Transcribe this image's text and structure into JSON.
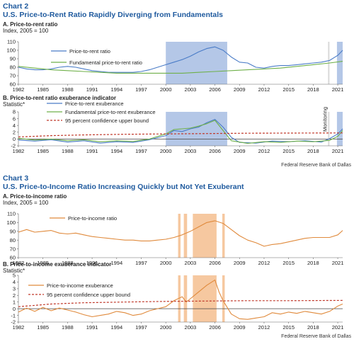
{
  "chart2": {
    "label": "Chart 2",
    "title": "U.S. Price-to-Rent Ratio Rapidly Diverging from Fundamentals",
    "panel_a_title": "A. Price-to-rent ratio",
    "panel_a_unit": "Index, 2005 = 100",
    "panel_b_title": "B. Price-to-rent ratio exuberance indicator",
    "panel_b_unit": "Statistic*",
    "monitoring_label": "Monitoring",
    "source": "Federal Reserve Bank of Dallas"
  },
  "chart3": {
    "label": "Chart 3",
    "title": "U.S. Price-to-Income Ratio Increasing Quickly but Not Yet Exuberant",
    "panel_a_title": "A. Price-to-income ratio",
    "panel_a_unit": "Index, 2005 = 100",
    "panel_b_title": "B. Price-to-income exuberance indicator",
    "panel_b_unit": "Statistic*",
    "source": "Federal Reserve Bank of Dallas"
  },
  "colors": {
    "blue": "#4a7cc7",
    "green": "#6fb04a",
    "orange": "#e08a3c",
    "red_dash": "#c0392b",
    "blue_shade": "#b4c7e7",
    "orange_shade": "#f6c8a0",
    "title": "#1f5a9e"
  },
  "chart_data": [
    {
      "type": "line",
      "x_ticks": [
        "1982",
        "1985",
        "1988",
        "1991",
        "1994",
        "1997",
        "2000",
        "2003",
        "2006",
        "2009",
        "2012",
        "2015",
        "2018",
        "2021"
      ],
      "xlim": [
        1982,
        2021.6
      ],
      "ylim": [
        60,
        110
      ],
      "y_ticks": [
        "60",
        "70",
        "80",
        "90",
        "100",
        "110"
      ],
      "shaded_periods": [
        [
          2000,
          2007.5
        ],
        [
          2020.9,
          2021.6
        ]
      ],
      "monitoring_line": 2019.9,
      "series": [
        {
          "name": "Price-to-rent ratio",
          "color_key": "blue",
          "points": [
            [
              1982,
              80
            ],
            [
              1983,
              78
            ],
            [
              1984,
              77
            ],
            [
              1985,
              77
            ],
            [
              1986,
              78
            ],
            [
              1987,
              80
            ],
            [
              1988,
              81
            ],
            [
              1989,
              80
            ],
            [
              1990,
              78
            ],
            [
              1991,
              76
            ],
            [
              1992,
              75
            ],
            [
              1993,
              74
            ],
            [
              1994,
              74
            ],
            [
              1995,
              74
            ],
            [
              1996,
              74
            ],
            [
              1997,
              75
            ],
            [
              1998,
              77
            ],
            [
              1999,
              80
            ],
            [
              2000,
              83
            ],
            [
              2001,
              86
            ],
            [
              2002,
              89
            ],
            [
              2003,
              93
            ],
            [
              2004,
              98
            ],
            [
              2005,
              102
            ],
            [
              2006,
              104
            ],
            [
              2007,
              100
            ],
            [
              2008,
              92
            ],
            [
              2009,
              86
            ],
            [
              2010,
              85
            ],
            [
              2011,
              80
            ],
            [
              2012,
              79
            ],
            [
              2013,
              81
            ],
            [
              2014,
              82
            ],
            [
              2015,
              82
            ],
            [
              2016,
              83
            ],
            [
              2017,
              84
            ],
            [
              2018,
              85
            ],
            [
              2019,
              86
            ],
            [
              2020,
              88
            ],
            [
              2021,
              94
            ],
            [
              2021.6,
              100
            ]
          ]
        },
        {
          "name": "Fundamental price-to-rent ratio",
          "color_key": "green",
          "points": [
            [
              1982,
              81
            ],
            [
              1984,
              79
            ],
            [
              1986,
              77
            ],
            [
              1988,
              76
            ],
            [
              1990,
              75
            ],
            [
              1992,
              74
            ],
            [
              1994,
              73
            ],
            [
              1996,
              73
            ],
            [
              1998,
              73
            ],
            [
              2000,
              73
            ],
            [
              2002,
              73
            ],
            [
              2004,
              74
            ],
            [
              2006,
              75
            ],
            [
              2008,
              76
            ],
            [
              2010,
              77
            ],
            [
              2012,
              78
            ],
            [
              2014,
              79
            ],
            [
              2016,
              81
            ],
            [
              2018,
              83
            ],
            [
              2020,
              85
            ],
            [
              2021.6,
              87
            ]
          ]
        }
      ]
    },
    {
      "type": "line",
      "x_ticks": [
        "1982",
        "1985",
        "1988",
        "1991",
        "1994",
        "1997",
        "2000",
        "2003",
        "2006",
        "2009",
        "2012",
        "2015",
        "2018",
        "2021"
      ],
      "xlim": [
        1982,
        2021.6
      ],
      "ylim": [
        -2,
        8
      ],
      "y_ticks": [
        "-2",
        "0",
        "2",
        "4",
        "6",
        "8"
      ],
      "shaded_periods": [
        [
          2000,
          2007.5
        ],
        [
          2020.9,
          2021.6
        ]
      ],
      "monitoring_line": 2019.9,
      "series": [
        {
          "name": "Price-to-rent exuberance",
          "color_key": "blue",
          "points": [
            [
              1982,
              -0.3
            ],
            [
              1984,
              -0.6
            ],
            [
              1986,
              -0.2
            ],
            [
              1988,
              -0.9
            ],
            [
              1990,
              -0.5
            ],
            [
              1992,
              -1.2
            ],
            [
              1994,
              -0.8
            ],
            [
              1996,
              -1.0
            ],
            [
              1998,
              -0.2
            ],
            [
              2000,
              1.0
            ],
            [
              2001,
              2.5
            ],
            [
              2002,
              2.2
            ],
            [
              2003,
              3.0
            ],
            [
              2004,
              3.5
            ],
            [
              2005,
              4.8
            ],
            [
              2006,
              5.8
            ],
            [
              2007,
              3.5
            ],
            [
              2008,
              0.5
            ],
            [
              2009,
              -1.0
            ],
            [
              2011,
              -1.2
            ],
            [
              2013,
              -0.6
            ],
            [
              2015,
              -0.8
            ],
            [
              2017,
              -0.5
            ],
            [
              2019,
              -0.9
            ],
            [
              2020,
              0.1
            ],
            [
              2021,
              1.5
            ],
            [
              2021.6,
              3.0
            ]
          ]
        },
        {
          "name": "Fundamental price-to-rent exuberance",
          "color_key": "green",
          "points": [
            [
              1982,
              0.2
            ],
            [
              1984,
              -0.3
            ],
            [
              1986,
              0.0
            ],
            [
              1988,
              -0.5
            ],
            [
              1990,
              -0.2
            ],
            [
              1992,
              -0.8
            ],
            [
              1994,
              -0.5
            ],
            [
              1996,
              -0.7
            ],
            [
              1998,
              0.0
            ],
            [
              2000,
              1.5
            ],
            [
              2001,
              2.8
            ],
            [
              2002,
              3.0
            ],
            [
              2003,
              3.2
            ],
            [
              2004,
              3.8
            ],
            [
              2005,
              4.5
            ],
            [
              2006,
              5.5
            ],
            [
              2007,
              2.5
            ],
            [
              2008,
              -0.5
            ],
            [
              2010,
              -1.3
            ],
            [
              2012,
              -0.8
            ],
            [
              2014,
              -1.0
            ],
            [
              2016,
              -0.6
            ],
            [
              2018,
              -0.8
            ],
            [
              2020,
              -0.4
            ],
            [
              2021,
              0.8
            ],
            [
              2021.6,
              2.5
            ]
          ]
        },
        {
          "name": "95 percent confidence upper bound",
          "color_key": "red_dash",
          "dashed": true,
          "points": [
            [
              1982,
              0.6
            ],
            [
              1986,
              1.0
            ],
            [
              1990,
              1.2
            ],
            [
              1995,
              1.4
            ],
            [
              2000,
              1.5
            ],
            [
              2005,
              1.6
            ],
            [
              2010,
              1.7
            ],
            [
              2015,
              1.75
            ],
            [
              2021.6,
              1.8
            ]
          ]
        }
      ]
    },
    {
      "type": "line",
      "x_ticks": [
        "1982",
        "1985",
        "1988",
        "1991",
        "1994",
        "1997",
        "2000",
        "2003",
        "2006",
        "2009",
        "2012",
        "2015",
        "2018",
        "2021"
      ],
      "xlim": [
        1982,
        2021.6
      ],
      "ylim": [
        60,
        110
      ],
      "y_ticks": [
        "60",
        "70",
        "80",
        "90",
        "100",
        "110"
      ],
      "shaded_periods": [
        [
          2001.5,
          2001.8
        ],
        [
          2002.2,
          2002.6
        ],
        [
          2003.3,
          2006.2
        ],
        [
          2006.9,
          2007.2
        ]
      ],
      "series": [
        {
          "name": "Price-to-income ratio",
          "color_key": "orange",
          "points": [
            [
              1982,
              89
            ],
            [
              1983,
              92
            ],
            [
              1984,
              89
            ],
            [
              1985,
              90
            ],
            [
              1986,
              91
            ],
            [
              1987,
              88
            ],
            [
              1988,
              87
            ],
            [
              1989,
              88
            ],
            [
              1990,
              86
            ],
            [
              1991,
              84
            ],
            [
              1992,
              83
            ],
            [
              1993,
              82
            ],
            [
              1994,
              81
            ],
            [
              1995,
              80
            ],
            [
              1996,
              80
            ],
            [
              1997,
              79
            ],
            [
              1998,
              79
            ],
            [
              1999,
              80
            ],
            [
              2000,
              81
            ],
            [
              2001,
              83
            ],
            [
              2002,
              86
            ],
            [
              2003,
              90
            ],
            [
              2004,
              95
            ],
            [
              2005,
              100
            ],
            [
              2006,
              102
            ],
            [
              2007,
              99
            ],
            [
              2008,
              92
            ],
            [
              2009,
              85
            ],
            [
              2010,
              80
            ],
            [
              2011,
              77
            ],
            [
              2012,
              73
            ],
            [
              2013,
              75
            ],
            [
              2014,
              76
            ],
            [
              2015,
              78
            ],
            [
              2016,
              80
            ],
            [
              2017,
              82
            ],
            [
              2018,
              83
            ],
            [
              2019,
              83
            ],
            [
              2020,
              83
            ],
            [
              2021,
              86
            ],
            [
              2021.6,
              91
            ]
          ]
        }
      ]
    },
    {
      "type": "line",
      "x_ticks": [
        "1982",
        "1985",
        "1988",
        "1991",
        "1994",
        "1997",
        "2000",
        "2003",
        "2006",
        "2009",
        "2012",
        "2015",
        "2018",
        "2021"
      ],
      "xlim": [
        1982,
        2021.6
      ],
      "ylim": [
        -2,
        5
      ],
      "y_ticks": [
        "-2",
        "-1",
        "0",
        "1",
        "2",
        "3",
        "4",
        "5"
      ],
      "shaded_periods": [
        [
          2001.5,
          2001.8
        ],
        [
          2002.2,
          2002.6
        ],
        [
          2003.3,
          2006.2
        ],
        [
          2006.9,
          2007.2
        ]
      ],
      "series": [
        {
          "name": "Price-to-income exuberance",
          "color_key": "orange",
          "points": [
            [
              1982,
              -0.5
            ],
            [
              1983,
              0.1
            ],
            [
              1984,
              -0.4
            ],
            [
              1985,
              0.2
            ],
            [
              1986,
              -0.3
            ],
            [
              1987,
              0.1
            ],
            [
              1988,
              -0.2
            ],
            [
              1989,
              -0.5
            ],
            [
              1990,
              -0.9
            ],
            [
              1991,
              -1.2
            ],
            [
              1992,
              -1.0
            ],
            [
              1993,
              -0.8
            ],
            [
              1994,
              -0.4
            ],
            [
              1995,
              -0.6
            ],
            [
              1996,
              -1.0
            ],
            [
              1997,
              -0.8
            ],
            [
              1998,
              -0.3
            ],
            [
              1999,
              0.0
            ],
            [
              2000,
              0.3
            ],
            [
              2001,
              1.2
            ],
            [
              2002,
              1.8
            ],
            [
              2002.5,
              1.0
            ],
            [
              2003,
              1.5
            ],
            [
              2004,
              2.5
            ],
            [
              2005,
              3.5
            ],
            [
              2006,
              4.3
            ],
            [
              2006.5,
              2.5
            ],
            [
              2007,
              1.2
            ],
            [
              2008,
              -0.8
            ],
            [
              2009,
              -1.5
            ],
            [
              2010,
              -1.6
            ],
            [
              2011,
              -1.4
            ],
            [
              2012,
              -1.2
            ],
            [
              2013,
              -0.6
            ],
            [
              2014,
              -0.8
            ],
            [
              2015,
              -0.5
            ],
            [
              2016,
              -0.7
            ],
            [
              2017,
              -0.4
            ],
            [
              2018,
              -0.6
            ],
            [
              2019,
              -0.8
            ],
            [
              2020,
              -0.4
            ],
            [
              2021,
              0.4
            ],
            [
              2021.6,
              0.7
            ]
          ]
        },
        {
          "name": "95 percent confidence upper bound",
          "color_key": "red_dash",
          "dashed": true,
          "points": [
            [
              1982,
              0.3
            ],
            [
              1986,
              0.7
            ],
            [
              1990,
              0.9
            ],
            [
              1995,
              1.0
            ],
            [
              2000,
              1.1
            ],
            [
              2005,
              1.15
            ],
            [
              2010,
              1.2
            ],
            [
              2015,
              1.2
            ],
            [
              2021.6,
              1.25
            ]
          ]
        }
      ]
    }
  ]
}
